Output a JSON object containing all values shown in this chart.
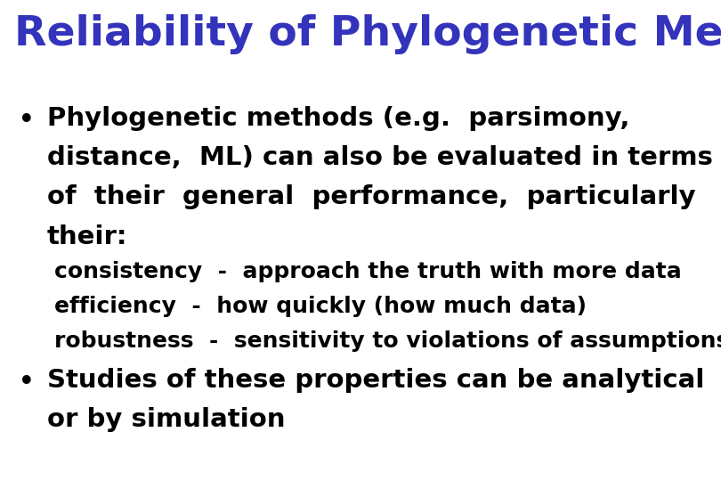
{
  "background_color": "#ffffff",
  "title": "Reliability of Phylogenetic Methods",
  "title_color": "#3333bb",
  "title_fontsize": 34,
  "bullet1_lines": [
    "Phylogenetic methods (e.g.  parsimony,",
    "distance,  ML) can also be evaluated in terms",
    "of  their  general  performance,  particularly",
    "their:"
  ],
  "sub_lines": [
    "consistency  -  approach the truth with more data",
    "efficiency  -  how quickly (how much data)",
    "robustness  -  sensitivity to violations of assumptions"
  ],
  "bullet2_lines": [
    "Studies of these properties can be analytical",
    "or by simulation"
  ],
  "bullet_color": "#000000",
  "sub_color": "#000000",
  "body_fontsize": 21,
  "sub_fontsize": 18,
  "bullet_fontsize": 24
}
